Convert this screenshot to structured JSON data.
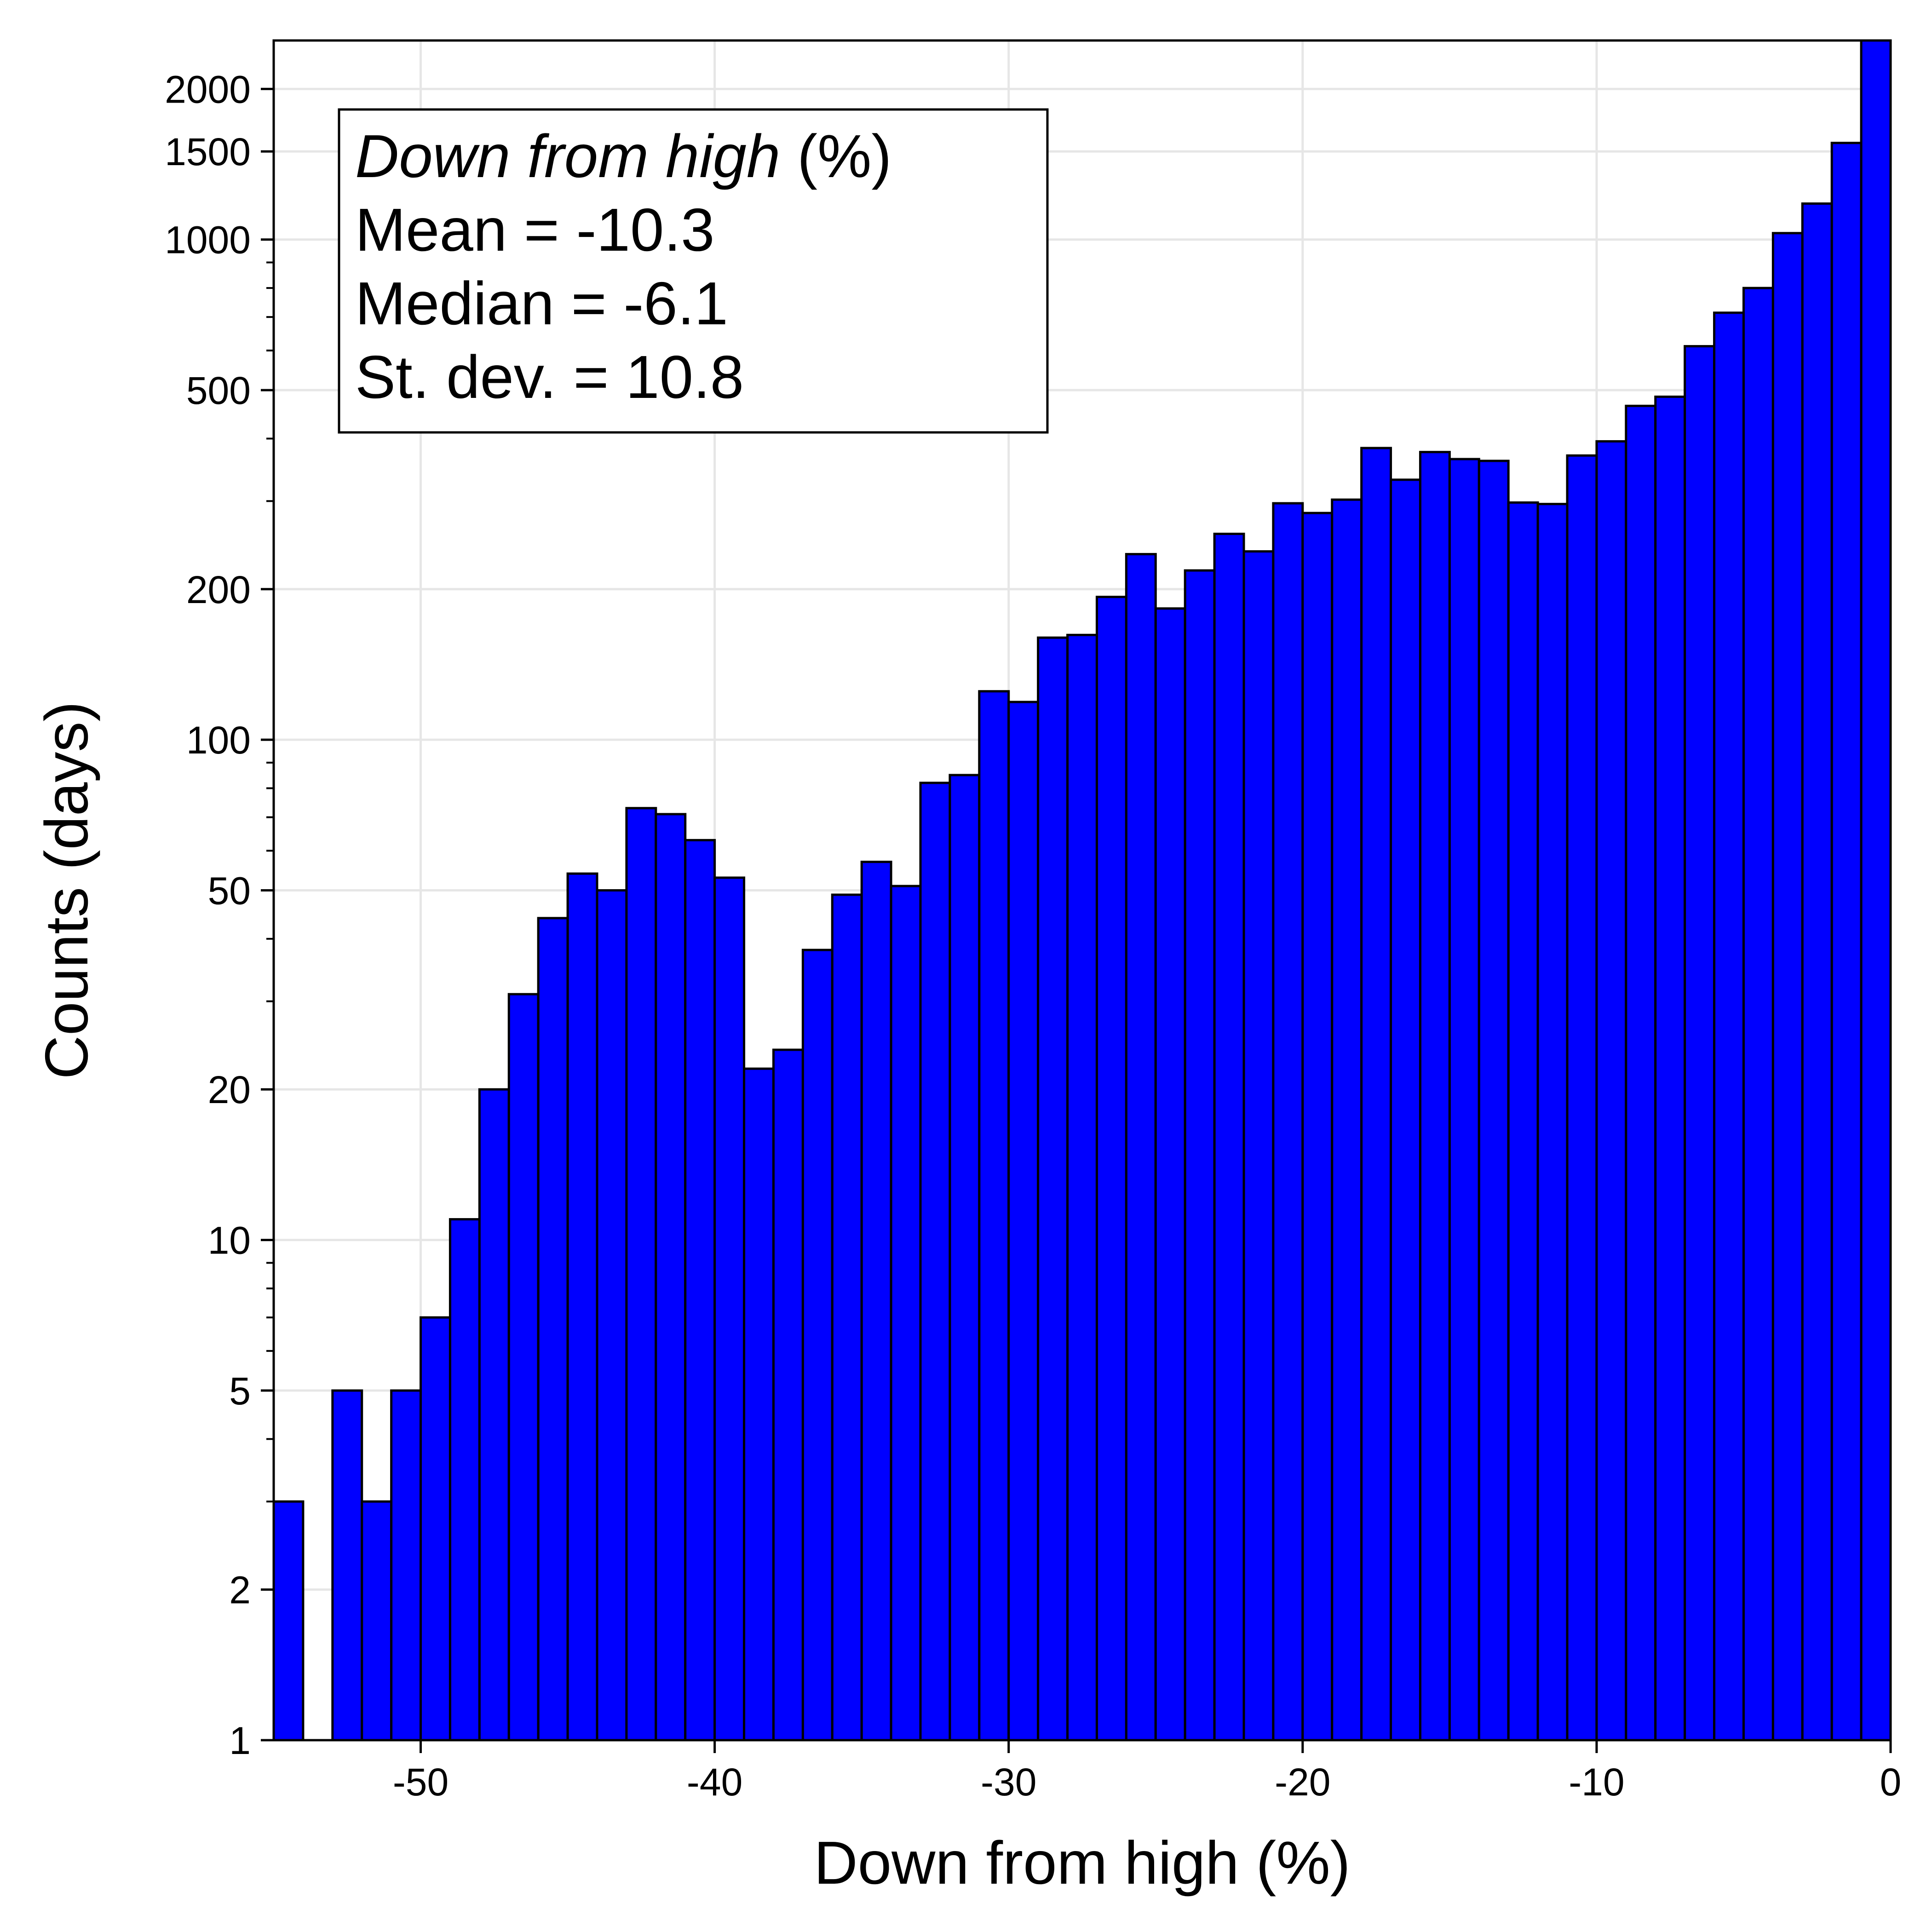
{
  "chart_data": {
    "type": "bar",
    "xlabel": "Down from high (%)",
    "ylabel": "Counts (days)",
    "y_scale": "log",
    "xlim": [
      -55,
      0
    ],
    "ylim": [
      1,
      2500
    ],
    "x_ticks": [
      -50,
      -40,
      -30,
      -20,
      -10,
      0
    ],
    "x_tick_labels": [
      "-50",
      "-40",
      "-30",
      "-20",
      "-10",
      "0"
    ],
    "y_ticks": [
      1,
      2,
      5,
      10,
      20,
      50,
      100,
      200,
      500,
      1000,
      1500,
      2000
    ],
    "y_tick_labels": [
      "1",
      "2",
      "5",
      "10",
      "20",
      "50",
      "100",
      "200",
      "500",
      "1000",
      "1500",
      "2000"
    ],
    "grid": true,
    "bar_color": "#0000FF",
    "edge_color": "#000000",
    "bin_width": 1,
    "bin_left_edges": [
      -55,
      -54,
      -53,
      -52,
      -51,
      -50,
      -49,
      -48,
      -47,
      -46,
      -45,
      -44,
      -43,
      -42,
      -41,
      -40,
      -39,
      -38,
      -37,
      -36,
      -35,
      -34,
      -33,
      -32,
      -31,
      -30,
      -29,
      -28,
      -27,
      -26,
      -25,
      -24,
      -23,
      -22,
      -21,
      -20,
      -19,
      -18,
      -17,
      -16,
      -15,
      -14,
      -13,
      -12,
      -11,
      -10,
      -9,
      -8,
      -7,
      -6,
      -5,
      -4,
      -3,
      -2,
      -1
    ],
    "counts": [
      3,
      0,
      5,
      3,
      5,
      7,
      11,
      20,
      31,
      44,
      54,
      50,
      73,
      71,
      63,
      53,
      22,
      24,
      38,
      49,
      57,
      51,
      82,
      85,
      125,
      119,
      160,
      162,
      193,
      235,
      183,
      218,
      258,
      238,
      297,
      284,
      302,
      383,
      331,
      376,
      364,
      361,
      298,
      296,
      370,
      395,
      465,
      485,
      612,
      714,
      800,
      1030,
      1180,
      1560,
      2500
    ],
    "annotation": {
      "title_italic": "Down from high",
      "title_suffix": "(%)",
      "mean": "Mean = -10.3",
      "median": "Median = -6.1",
      "stdev": "St. dev. = 10.8"
    }
  }
}
